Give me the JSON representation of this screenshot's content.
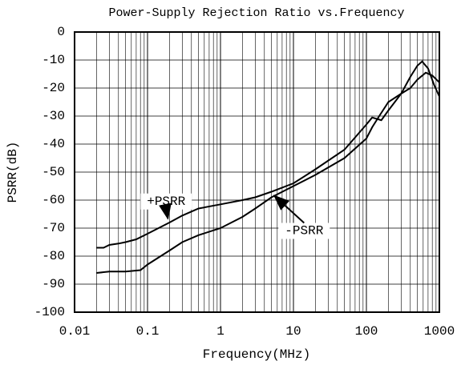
{
  "chart_data": {
    "type": "line",
    "title": "Power-Supply Rejection Ratio vs.Frequency",
    "x_label": "Frequency(MHz)",
    "y_label": "PSRR(dB)",
    "log_x": true,
    "grid": true,
    "minor_grid": true,
    "xlim": [
      0.01,
      1000
    ],
    "xticks": [
      {
        "value": 0.01,
        "label": "0.01"
      },
      {
        "value": 0.1,
        "label": "0.1"
      },
      1,
      10,
      100,
      1000
    ],
    "ylim": [
      -100,
      0
    ],
    "yticks": [
      0,
      -10,
      -20,
      -30,
      -40,
      -50,
      -60,
      -70,
      -80,
      -90,
      -100
    ],
    "series": [
      {
        "name": "+PSRR",
        "color": "#000000",
        "x": [
          0.02,
          0.025,
          0.03,
          0.04,
          0.05,
          0.07,
          0.1,
          0.2,
          0.3,
          0.5,
          1,
          2,
          3,
          5,
          10,
          20,
          50,
          100,
          120,
          160,
          200,
          300,
          400,
          500,
          580,
          700,
          850,
          1000
        ],
        "values": [
          -77,
          -77,
          -76,
          -75.5,
          -75,
          -74,
          -72,
          -68,
          -65.5,
          -63,
          -61.5,
          -60,
          -59,
          -57,
          -54,
          -49,
          -42,
          -33,
          -30.5,
          -31.5,
          -28,
          -22,
          -16,
          -12,
          -10.5,
          -13,
          -19,
          -23
        ]
      },
      {
        "name": "-PSRR",
        "color": "#000000",
        "x": [
          0.02,
          0.03,
          0.05,
          0.08,
          0.1,
          0.2,
          0.3,
          0.5,
          1,
          2,
          3,
          5,
          10,
          20,
          50,
          100,
          120,
          150,
          200,
          300,
          400,
          500,
          650,
          800,
          1000
        ],
        "values": [
          -86,
          -85.5,
          -85.5,
          -85,
          -83,
          -78,
          -75,
          -72.5,
          -70,
          -66,
          -63,
          -59,
          -55,
          -51,
          -45,
          -38,
          -34,
          -30,
          -25,
          -22,
          -20,
          -17,
          -14.5,
          -15.5,
          -18
        ]
      }
    ],
    "annotations": [
      {
        "text": "+PSRR",
        "x": 0.18,
        "y": -60.5,
        "arrow_x": 0.19,
        "arrow_y": -66.5
      },
      {
        "text": "-PSRR",
        "x": 14,
        "y": -71,
        "arrow_x": 5.5,
        "arrow_y": -58.5
      }
    ]
  }
}
